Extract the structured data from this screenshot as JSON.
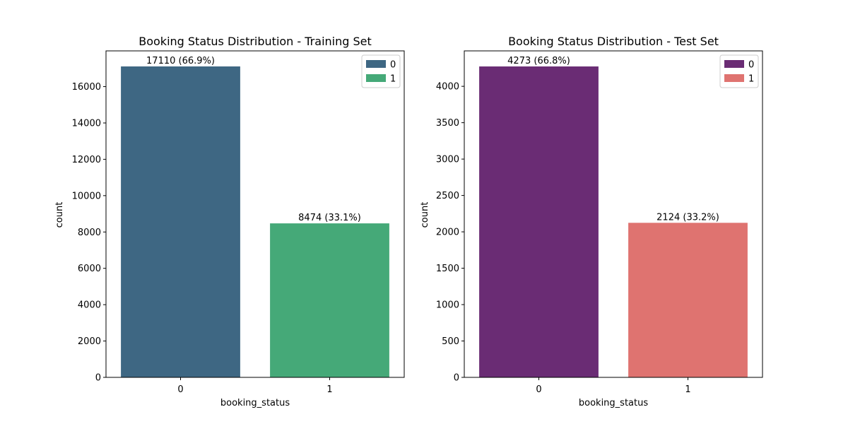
{
  "chart_data": [
    {
      "type": "bar",
      "title": "Booking Status Distribution - Training Set",
      "xlabel": "booking_status",
      "ylabel": "count",
      "categories": [
        "0",
        "1"
      ],
      "values": [
        17110,
        8474
      ],
      "data_labels": [
        "17110 (66.9%)",
        "8474 (33.1%)"
      ],
      "colors": [
        "#3e6783",
        "#45a978"
      ],
      "ylim": [
        0,
        17966
      ],
      "yticks": [
        0,
        2000,
        4000,
        6000,
        8000,
        10000,
        12000,
        14000,
        16000
      ],
      "legend": {
        "entries": [
          "0",
          "1"
        ],
        "placement": "top-right"
      },
      "grid": false
    },
    {
      "type": "bar",
      "title": "Booking Status Distribution - Test Set",
      "xlabel": "booking_status",
      "ylabel": "count",
      "categories": [
        "0",
        "1"
      ],
      "values": [
        4273,
        2124
      ],
      "data_labels": [
        "4273 (66.8%)",
        "2124 (33.2%)"
      ],
      "colors": [
        "#6a2c74",
        "#df7370"
      ],
      "ylim": [
        0,
        4487
      ],
      "yticks": [
        0,
        500,
        1000,
        1500,
        2000,
        2500,
        3000,
        3500,
        4000
      ],
      "legend": {
        "entries": [
          "0",
          "1"
        ],
        "placement": "top-right"
      },
      "grid": false
    }
  ]
}
